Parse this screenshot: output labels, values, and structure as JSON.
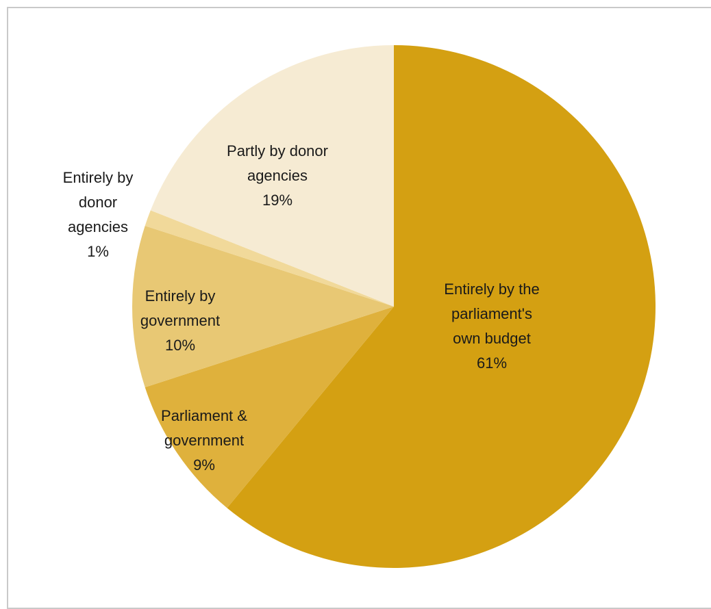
{
  "chart_data": {
    "type": "pie",
    "title": "",
    "start_angle_deg": 0,
    "direction": "clockwise",
    "slices": [
      {
        "name": "Entirely by the parliament's own budget",
        "label_lines": [
          "Entirely by the",
          "parliament's",
          "own budget"
        ],
        "value_label": "61%",
        "value": 61,
        "color": "#D4A012"
      },
      {
        "name": "Parliament & government",
        "label_lines": [
          "Parliament &",
          "government"
        ],
        "value_label": "9%",
        "value": 9,
        "color": "#DFB13C"
      },
      {
        "name": "Entirely by government",
        "label_lines": [
          "Entirely by",
          "government"
        ],
        "value_label": "10%",
        "value": 10,
        "color": "#E8C874"
      },
      {
        "name": "Entirely by donor agencies",
        "label_lines": [
          "Entirely by",
          "donor",
          "agencies"
        ],
        "value_label": "1%",
        "value": 1,
        "color": "#F1D99A"
      },
      {
        "name": "Partly by donor agencies",
        "label_lines": [
          "Partly by donor",
          "agencies"
        ],
        "value_label": "19%",
        "value": 19,
        "color": "#F6EBD3"
      }
    ]
  }
}
